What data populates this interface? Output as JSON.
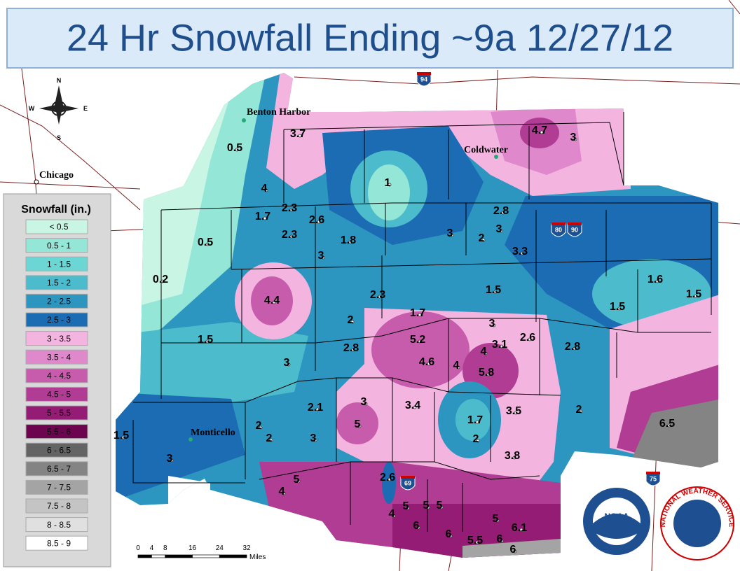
{
  "header": {
    "title": "24 Hr Snowfall Ending ~9a 12/27/12"
  },
  "legend": {
    "title": "Snowfall (in.)",
    "items": [
      {
        "label": "< 0.5",
        "color": "#c8f5e4"
      },
      {
        "label": "0.5 - 1",
        "color": "#94e6d6"
      },
      {
        "label": "1 - 1.5",
        "color": "#6cd6d4"
      },
      {
        "label": "1.5 - 2",
        "color": "#4cbccc"
      },
      {
        "label": "2 - 2.5",
        "color": "#2c96c0"
      },
      {
        "label": "2.5 - 3",
        "color": "#1c6cb4"
      },
      {
        "label": "3 - 3.5",
        "color": "#f4b4e0"
      },
      {
        "label": "3.5 - 4",
        "color": "#e088cc"
      },
      {
        "label": "4 - 4.5",
        "color": "#c85cac"
      },
      {
        "label": "4.5 - 5",
        "color": "#b03c94"
      },
      {
        "label": "5 - 5.5",
        "color": "#941c74"
      },
      {
        "label": "5.5 - 6",
        "color": "#6c0450"
      },
      {
        "label": "6 - 6.5",
        "color": "#646464"
      },
      {
        "label": "6.5 - 7",
        "color": "#848484"
      },
      {
        "label": "7 - 7.5",
        "color": "#a4a4a4"
      },
      {
        "label": "7.5 - 8",
        "color": "#c4c4c4"
      },
      {
        "label": "8 - 8.5",
        "color": "#e0e0e0"
      },
      {
        "label": "8.5 - 9",
        "color": "#ffffff"
      }
    ]
  },
  "observations": [
    0.5,
    3.7,
    4.7,
    3,
    1,
    4,
    2.3,
    1.7,
    2.6,
    2.8,
    3,
    3,
    2,
    3.3,
    0.5,
    2.3,
    1.8,
    3,
    0.2,
    4.4,
    2.3,
    1.5,
    1.6,
    1.5,
    1.5,
    1.7,
    2,
    3,
    5.2,
    3.1,
    2.6,
    1.5,
    2.8,
    4,
    2.8,
    3,
    4.6,
    4,
    5.8,
    2.1,
    3,
    3.4,
    3.5,
    2,
    5,
    6.5,
    1.7,
    2,
    2,
    3,
    2,
    1.5,
    3,
    3.8,
    2.6,
    5,
    4,
    5,
    5,
    5,
    4,
    6,
    5,
    6.1,
    6,
    5.5,
    6,
    6
  ],
  "places": [
    "Benton Harbor",
    "Chicago",
    "Coldwater",
    "Monticello"
  ],
  "highways": [
    "94",
    "80",
    "90",
    "69",
    "75"
  ],
  "compass": [
    "N",
    "E",
    "S",
    "W"
  ],
  "scale": {
    "ticks": [
      0,
      4,
      8,
      16,
      24,
      32
    ],
    "unit": "Miles"
  },
  "logos": {
    "noaa": "NOAA",
    "nws": "NATIONAL WEATHER SERVICE"
  }
}
